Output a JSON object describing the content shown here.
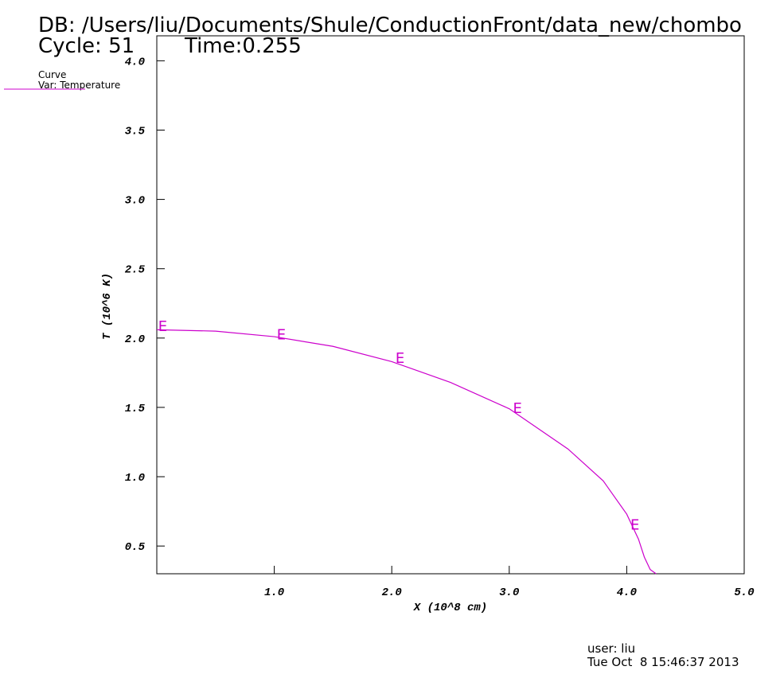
{
  "chart_data": {
    "type": "line",
    "db_label": "DB: /Users/liu/Documents/Shule/ConductionFront/data_new/chombo",
    "cycle_label": "Cycle: 51",
    "time_label": "Time:0.255",
    "legend_title": "Curve",
    "legend_var": "Var: Temperature",
    "xlabel": "X (10^8 cm)",
    "ylabel": "T (10^6 K)",
    "user_label": "user: liu",
    "date_label": "Tue Oct  8 15:46:37 2013",
    "xlim": [
      0,
      5.0
    ],
    "ylim": [
      0.3,
      4.18
    ],
    "xticks": [
      {
        "value": 1,
        "label": "1.0"
      },
      {
        "value": 2,
        "label": "2.0"
      },
      {
        "value": 3,
        "label": "3.0"
      },
      {
        "value": 4,
        "label": "4.0"
      },
      {
        "value": 5,
        "label": "5.0"
      }
    ],
    "yticks": [
      0.5,
      {
        "value": 1,
        "label": "1.0"
      },
      1.5,
      {
        "value": 2,
        "label": "2.0"
      },
      2.5,
      {
        "value": 3,
        "label": "3.0"
      },
      3.5,
      {
        "value": 4,
        "label": "4.0"
      }
    ],
    "series": [
      {
        "name": "Temperature",
        "color": "#cc00cc",
        "x": [
          0,
          0.5,
          1.0,
          1.5,
          2.0,
          2.5,
          3.0,
          3.5,
          3.8,
          4.0,
          4.1,
          4.15,
          4.2,
          4.25
        ],
        "values": [
          2.06,
          2.05,
          2.01,
          1.94,
          1.83,
          1.68,
          1.49,
          1.2,
          0.97,
          0.73,
          0.55,
          0.42,
          0.33,
          0.3
        ],
        "marker_label": "E",
        "marker_x": [
          0.05,
          1.06,
          2.07,
          3.07,
          4.07
        ],
        "marker_y": [
          2.09,
          2.03,
          1.86,
          1.5,
          0.66
        ]
      }
    ]
  }
}
